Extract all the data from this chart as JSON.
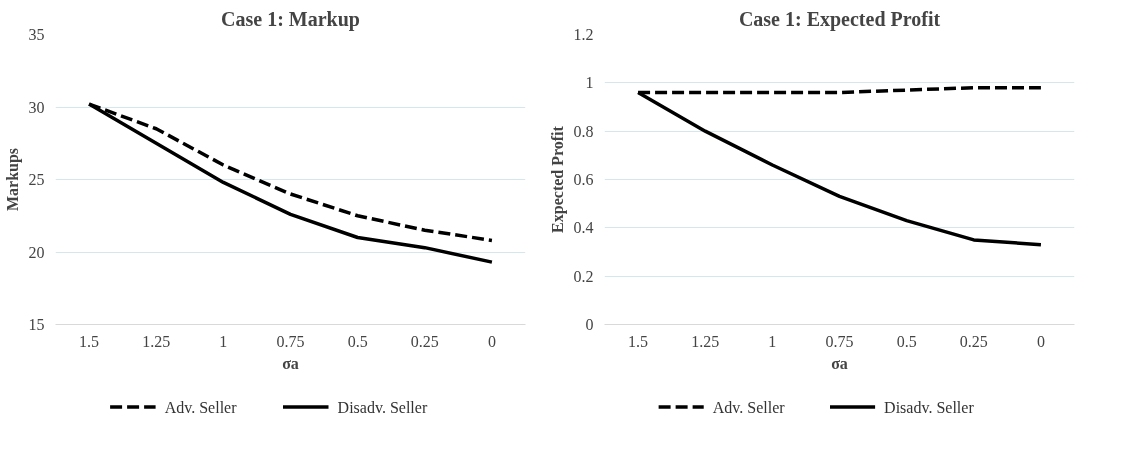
{
  "chart_data": [
    {
      "type": "line",
      "title": "Case 1: Markup",
      "xlabel": "σa",
      "ylabel": "Markups",
      "categories": [
        "1.5",
        "1.25",
        "1",
        "0.75",
        "0.5",
        "0.25",
        "0"
      ],
      "ylim": [
        15,
        35
      ],
      "yticks": [
        15,
        20,
        25,
        30,
        35
      ],
      "grid": "y",
      "legend": "bottom",
      "marker": "none",
      "series": [
        {
          "name": "Adv. Seller",
          "color": "#000000",
          "line_style": "dashed",
          "values": [
            30.2,
            28.5,
            26.0,
            24.0,
            22.5,
            21.5,
            20.8
          ]
        },
        {
          "name": "Disadv. Seller",
          "color": "#000000",
          "line_style": "solid",
          "values": [
            30.2,
            27.5,
            24.8,
            22.6,
            21.0,
            20.3,
            19.3
          ]
        }
      ]
    },
    {
      "type": "line",
      "title": "Case 1: Expected Profit",
      "xlabel": "σa",
      "ylabel": "Expected Profit",
      "categories": [
        "1.5",
        "1.25",
        "1",
        "0.75",
        "0.5",
        "0.25",
        "0"
      ],
      "ylim": [
        0,
        1.2
      ],
      "yticks": [
        0,
        0.2,
        0.4,
        0.6,
        0.8,
        1,
        1.2
      ],
      "grid": "y",
      "legend": "bottom",
      "marker": "none",
      "series": [
        {
          "name": "Adv. Seller",
          "color": "#000000",
          "line_style": "dashed",
          "values": [
            0.96,
            0.96,
            0.96,
            0.96,
            0.97,
            0.98,
            0.98
          ]
        },
        {
          "name": "Disadv. Seller",
          "color": "#000000",
          "line_style": "solid",
          "values": [
            0.96,
            0.8,
            0.66,
            0.53,
            0.43,
            0.35,
            0.33
          ]
        }
      ]
    }
  ]
}
